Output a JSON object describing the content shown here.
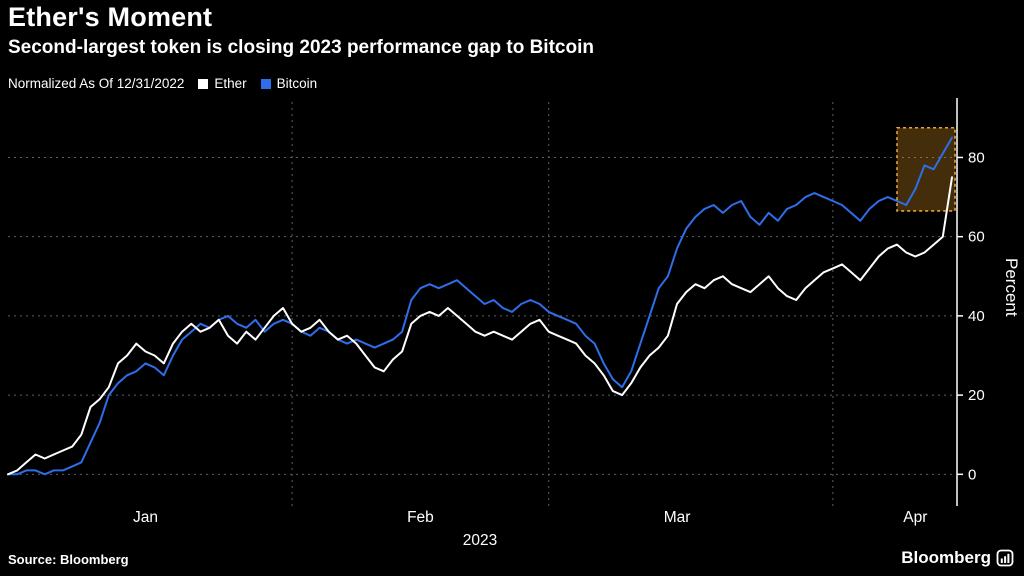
{
  "header": {
    "title": "Ether's Moment",
    "subtitle": "Second-largest token is closing 2023 performance gap to Bitcoin"
  },
  "legend": {
    "note": "Normalized As Of 12/31/2022",
    "items": [
      {
        "label": "Ether",
        "color": "#ffffff"
      },
      {
        "label": "Bitcoin",
        "color": "#2e6eea"
      }
    ]
  },
  "footer": {
    "source": "Source: Bloomberg",
    "brand": "Bloomberg"
  },
  "colors": {
    "background": "#000000",
    "grid": "#5f5f5f",
    "axis": "#ffffff",
    "ether": "#ffffff",
    "bitcoin": "#2e6eea",
    "highlight_stroke": "#e8a33d",
    "highlight_fill": "rgba(222,148,36,0.30)"
  },
  "chart_data": {
    "type": "line",
    "title": "Ether's Moment",
    "subtitle": "Second-largest token is closing 2023 performance gap to Bitcoin",
    "note": "Normalized As Of 12/31/2022",
    "xlabel": "2023",
    "ylabel": "Percent",
    "x_unit": "days since 12/31/2022 (Jan 1 2023 = day 0)",
    "x_range_days": [
      0,
      103
    ],
    "x_tick_labels": [
      "Jan",
      "Feb",
      "Mar",
      "Apr"
    ],
    "x_tick_days": [
      15,
      45,
      73,
      99
    ],
    "x_gridline_days": [
      31,
      59,
      90
    ],
    "y_ticks": [
      0,
      20,
      40,
      60,
      80
    ],
    "ylim": [
      -8,
      94
    ],
    "grid": true,
    "legend_position": "top-left",
    "series": [
      {
        "name": "Ether",
        "color": "#ffffff",
        "values": [
          0,
          1,
          3,
          5,
          4,
          5,
          6,
          7,
          10,
          17,
          19,
          22,
          28,
          30,
          33,
          31,
          30,
          28,
          33,
          36,
          38,
          36,
          37,
          39,
          35,
          33,
          36,
          34,
          37,
          40,
          42,
          38,
          36,
          37,
          39,
          36,
          34,
          35,
          33,
          30,
          27,
          26,
          29,
          31,
          38,
          40,
          41,
          40,
          42,
          40,
          38,
          36,
          35,
          36,
          35,
          34,
          36,
          38,
          39,
          36,
          35,
          34,
          33,
          30,
          28,
          25,
          21,
          20,
          23,
          27,
          30,
          32,
          35,
          43,
          46,
          48,
          47,
          49,
          50,
          48,
          47,
          46,
          48,
          50,
          47,
          45,
          44,
          47,
          49,
          51,
          52,
          53,
          51,
          49,
          52,
          55,
          57,
          58,
          56,
          55,
          56,
          58,
          60,
          75
        ]
      },
      {
        "name": "Bitcoin",
        "color": "#2e6eea",
        "values": [
          0,
          0,
          1,
          1,
          0,
          1,
          1,
          2,
          3,
          8,
          13,
          20,
          23,
          25,
          26,
          28,
          27,
          25,
          30,
          34,
          36,
          38,
          37,
          39,
          40,
          38,
          37,
          39,
          36,
          38,
          39,
          38,
          36,
          35,
          37,
          36,
          34,
          33,
          34,
          33,
          32,
          33,
          34,
          36,
          44,
          47,
          48,
          47,
          48,
          49,
          47,
          45,
          43,
          44,
          42,
          41,
          43,
          44,
          43,
          41,
          40,
          39,
          38,
          35,
          33,
          28,
          24,
          22,
          26,
          33,
          40,
          47,
          50,
          57,
          62,
          65,
          67,
          68,
          66,
          68,
          69,
          65,
          63,
          66,
          64,
          67,
          68,
          70,
          71,
          70,
          69,
          68,
          66,
          64,
          67,
          69,
          70,
          69,
          68,
          72,
          78,
          77,
          81,
          85
        ]
      }
    ],
    "highlight_box": {
      "x0_day": 97,
      "x1_day": 103.8,
      "y0": 66.5,
      "y1": 87.5,
      "stroke": "#e8a33d",
      "fill": "rgba(222,148,36,0.30)"
    }
  }
}
